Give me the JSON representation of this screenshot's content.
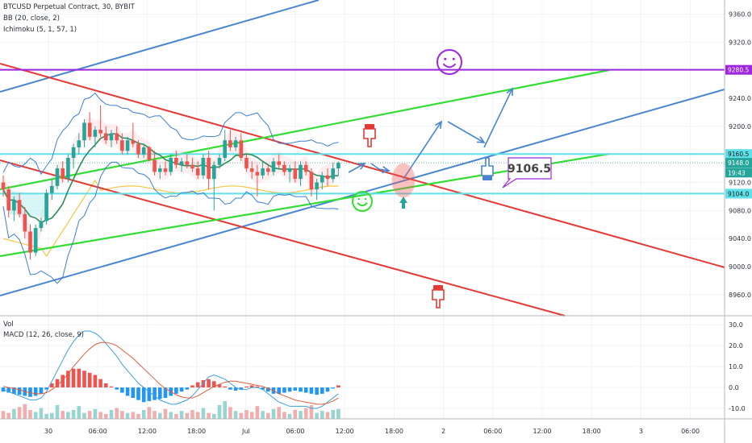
{
  "legend": {
    "symbol": "BTCUSD Perpetual Contract, 30, BYBIT",
    "bb": "BB (20, close, 2)",
    "ichimoku": "Ichimoku (5, 1, 57, 1)",
    "vol": "Vol",
    "macd": "MACD (12, 26, close, 9)"
  },
  "colors": {
    "up": "#ef5350",
    "down": "#26a69a",
    "red_line": "#e53935",
    "green_line": "#33dd33",
    "blue_line": "#4a86d0",
    "purple_line": "#9c27dd",
    "cyan_line": "#5ee0e8",
    "bb_band": "#3d7dd6",
    "bb_basis": "#2e8b57",
    "lagging": "#f5c542",
    "macd_line": "#3d9fe0",
    "signal_line": "#e25c3a"
  },
  "chart_data": [
    {
      "type": "candlestick",
      "title": "BTCUSD Perpetual Contract, 30, BYBIT",
      "ylim": [
        8930,
        9380
      ],
      "y_ticks": [
        "9360.0",
        "9320.0",
        "9280.0",
        "9240.0",
        "9200.0",
        "9160.0",
        "9120.0",
        "9080.0",
        "9040.0",
        "9000.0",
        "8960.0"
      ],
      "x_ticks": [
        "30",
        "06:00",
        "12:00",
        "18:00",
        "Jul",
        "06:00",
        "12:00",
        "18:00",
        "2",
        "06:00",
        "12:00",
        "18:00",
        "3",
        "06:00"
      ],
      "price_tags": [
        {
          "label": "9280.5",
          "value": 9280.5,
          "color": "#9c27dd"
        },
        {
          "label": "9160.5",
          "value": 9160.5,
          "color": "#5ee0e8"
        },
        {
          "label": "9148.0",
          "value": 9148.0,
          "color": "#26a69a"
        },
        {
          "label": "19:43",
          "value": 9134.0,
          "color": "#26a69a"
        },
        {
          "label": "9104.0",
          "value": 9104.0,
          "color": "#5ee0e8"
        }
      ],
      "annotation": "9106.5",
      "candles": [
        [
          9120,
          9130,
          9100,
          9110
        ],
        [
          9110,
          9115,
          9070,
          9080
        ],
        [
          9080,
          9100,
          9065,
          9095
        ],
        [
          9095,
          9105,
          9070,
          9075
        ],
        [
          9075,
          9085,
          9040,
          9050
        ],
        [
          9050,
          9060,
          9010,
          9020
        ],
        [
          9020,
          9060,
          9015,
          9055
        ],
        [
          9055,
          9070,
          9050,
          9065
        ],
        [
          9065,
          9110,
          9060,
          9105
        ],
        [
          9105,
          9125,
          9095,
          9115
        ],
        [
          9115,
          9145,
          9110,
          9140
        ],
        [
          9140,
          9150,
          9120,
          9125
        ],
        [
          9125,
          9160,
          9120,
          9155
        ],
        [
          9155,
          9175,
          9140,
          9170
        ],
        [
          9170,
          9190,
          9160,
          9180
        ],
        [
          9180,
          9210,
          9170,
          9205
        ],
        [
          9205,
          9220,
          9180,
          9185
        ],
        [
          9185,
          9200,
          9170,
          9195
        ],
        [
          9195,
          9230,
          9185,
          9190
        ],
        [
          9190,
          9200,
          9175,
          9180
        ],
        [
          9180,
          9195,
          9170,
          9190
        ],
        [
          9190,
          9200,
          9175,
          9180
        ],
        [
          9180,
          9190,
          9160,
          9165
        ],
        [
          9165,
          9185,
          9160,
          9180
        ],
        [
          9180,
          9205,
          9170,
          9175
        ],
        [
          9175,
          9180,
          9155,
          9160
        ],
        [
          9160,
          9175,
          9155,
          9170
        ],
        [
          9170,
          9172,
          9150,
          9152
        ],
        [
          9152,
          9165,
          9130,
          9135
        ],
        [
          9135,
          9145,
          9125,
          9140
        ],
        [
          9140,
          9150,
          9130,
          9135
        ],
        [
          9135,
          9160,
          9130,
          9155
        ],
        [
          9155,
          9165,
          9140,
          9145
        ],
        [
          9145,
          9155,
          9135,
          9150
        ],
        [
          9150,
          9160,
          9140,
          9145
        ],
        [
          9145,
          9155,
          9135,
          9140
        ],
        [
          9140,
          9150,
          9125,
          9130
        ],
        [
          9130,
          9160,
          9125,
          9155
        ],
        [
          9155,
          9165,
          9110,
          9125
        ],
        [
          9125,
          9150,
          9080,
          9145
        ],
        [
          9145,
          9160,
          9140,
          9155
        ],
        [
          9155,
          9195,
          9150,
          9180
        ],
        [
          9180,
          9195,
          9165,
          9170
        ],
        [
          9170,
          9185,
          9165,
          9180
        ],
        [
          9180,
          9190,
          9150,
          9155
        ],
        [
          9155,
          9160,
          9135,
          9140
        ],
        [
          9140,
          9150,
          9125,
          9135
        ],
        [
          9135,
          9145,
          9100,
          9130
        ],
        [
          9130,
          9150,
          9125,
          9140
        ],
        [
          9140,
          9145,
          9130,
          9135
        ],
        [
          9135,
          9155,
          9130,
          9150
        ],
        [
          9150,
          9160,
          9140,
          9145
        ],
        [
          9145,
          9150,
          9130,
          9135
        ],
        [
          9135,
          9145,
          9120,
          9140
        ],
        [
          9140,
          9150,
          9120,
          9125
        ],
        [
          9125,
          9150,
          9115,
          9145
        ],
        [
          9145,
          9150,
          9130,
          9135
        ],
        [
          9135,
          9140,
          9100,
          9110
        ],
        [
          9110,
          9125,
          9095,
          9120
        ],
        [
          9120,
          9135,
          9110,
          9130
        ],
        [
          9130,
          9140,
          9115,
          9125
        ],
        [
          9125,
          9148,
          9120,
          9140
        ],
        [
          9140,
          9150,
          9130,
          9148
        ]
      ]
    },
    {
      "type": "bar",
      "title": "Vol",
      "values": [
        8,
        6,
        10,
        12,
        15,
        9,
        7,
        11,
        5,
        6,
        14,
        8,
        7,
        9,
        13,
        6,
        8,
        10,
        7,
        5,
        9,
        11,
        8,
        6,
        7,
        5,
        9,
        12,
        8,
        6,
        10,
        7,
        5,
        8,
        6,
        9,
        7,
        11,
        6,
        5,
        14,
        18,
        12,
        8,
        6,
        9,
        7,
        13,
        8,
        6,
        10,
        12,
        7,
        5,
        9,
        8,
        11,
        14,
        6,
        8,
        7,
        9,
        10
      ]
    },
    {
      "type": "line",
      "title": "MACD (12, 26, close, 9)",
      "ylim": [
        -15,
        32
      ],
      "y_ticks": [
        "30.0",
        "20.0",
        "10.0",
        "0.0",
        "-10.0"
      ],
      "histogram": [
        -2,
        -2.5,
        -3,
        -3.5,
        -4,
        -4.5,
        -4,
        -3,
        -1,
        2,
        4,
        6,
        8,
        9,
        9,
        8,
        7,
        6,
        4,
        2,
        0.5,
        -1,
        -2.5,
        -4,
        -5,
        -6,
        -7,
        -6.5,
        -6,
        -5.5,
        -5,
        -4,
        -3,
        -2,
        -1,
        1,
        2.5,
        3.5,
        4,
        3,
        1.5,
        0.5,
        -1,
        -1.5,
        -1,
        0.5,
        1,
        0.5,
        -1,
        -2,
        -3,
        -3,
        -2.5,
        -2,
        -1.5,
        -2,
        -2.5,
        -3,
        -3.5,
        -3,
        -2,
        -0.5,
        1
      ],
      "series": [
        {
          "key": "macd",
          "values": [
            -1,
            -2,
            -3,
            -4,
            -5,
            -6,
            -6,
            -5,
            -2,
            3,
            8,
            13,
            18,
            22,
            25,
            27,
            27,
            26,
            24,
            21,
            18,
            15,
            11,
            8,
            5,
            2,
            0,
            -2,
            -4,
            -6,
            -7,
            -8,
            -8,
            -7,
            -6,
            -4,
            -1,
            2,
            5,
            6,
            5,
            4,
            2,
            0,
            -1,
            -1,
            0,
            0,
            -1,
            -3,
            -5,
            -7,
            -8,
            -9,
            -9,
            -9,
            -9,
            -10,
            -10,
            -9,
            -7,
            -5,
            -3
          ]
        },
        {
          "key": "signal",
          "values": [
            0.5,
            0,
            -0.5,
            -1,
            -2,
            -2.5,
            -3,
            -3,
            -2.5,
            -1,
            1,
            3.5,
            6.5,
            10,
            13,
            16,
            18.5,
            20.5,
            21.5,
            21.5,
            21,
            20,
            18,
            16,
            14,
            11.5,
            9,
            6.5,
            4,
            1.5,
            -0.5,
            -2,
            -3.5,
            -4.5,
            -5,
            -5,
            -4,
            -2.5,
            -1,
            0.5,
            1.5,
            2.5,
            3,
            3,
            2.5,
            2,
            1.5,
            1,
            0.5,
            -0.5,
            -1.5,
            -3,
            -4,
            -5,
            -6,
            -6.5,
            -7,
            -7.5,
            -8,
            -8,
            -7.5,
            -6.5,
            -5
          ]
        }
      ]
    }
  ]
}
